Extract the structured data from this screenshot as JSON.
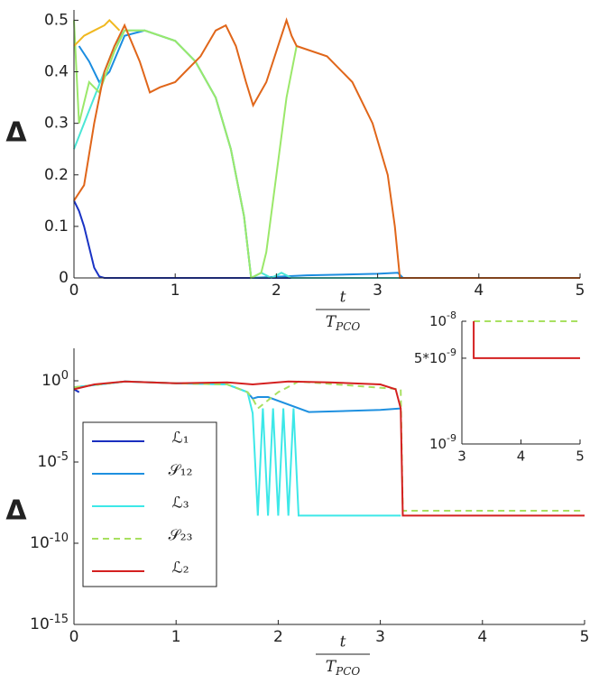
{
  "chart_data": [
    {
      "type": "line",
      "y_label": "Δ",
      "x_label": "t",
      "x_label_denominator": "T",
      "x_label_denominator_subscript": "PCO",
      "xlim": [
        0,
        5
      ],
      "ylim": [
        0,
        0.52
      ],
      "xticks": [
        0,
        1,
        2,
        3,
        4,
        5
      ],
      "yticks": [
        0,
        0.1,
        0.2,
        0.3,
        0.4,
        0.5
      ],
      "series": [
        {
          "color": "#1a33c4",
          "x": [
            0,
            0.05,
            0.1,
            0.15,
            0.2,
            0.25,
            0.3,
            5
          ],
          "values": [
            0.15,
            0.13,
            0.1,
            0.06,
            0.02,
            0.003,
            0,
            0
          ]
        },
        {
          "color": "#1b8de0",
          "x": [
            0.05,
            0.15,
            0.25,
            0.35,
            0.5,
            0.7,
            1.0,
            1.2,
            1.4,
            1.55,
            1.68,
            1.75,
            2.3,
            3.0,
            3.2,
            3.25,
            5
          ],
          "values": [
            0.45,
            0.42,
            0.38,
            0.4,
            0.47,
            0.48,
            0.46,
            0.42,
            0.35,
            0.25,
            0.12,
            0,
            0.005,
            0.008,
            0.01,
            0,
            0
          ]
        },
        {
          "color": "#4be6d6",
          "x": [
            0,
            0.1,
            0.2,
            0.4,
            0.5,
            0.7,
            1.0,
            1.2,
            1.4,
            1.55,
            1.68,
            1.75,
            1.85,
            1.95,
            2.05,
            2.15,
            2.3,
            5
          ],
          "values": [
            0.25,
            0.3,
            0.35,
            0.45,
            0.48,
            0.48,
            0.46,
            0.42,
            0.35,
            0.25,
            0.12,
            0,
            0.01,
            0,
            0.01,
            0,
            0,
            0
          ]
        },
        {
          "color": "#9be86a",
          "x": [
            0,
            0.05,
            0.15,
            0.25,
            0.4,
            0.5,
            0.7,
            1.0,
            1.2,
            1.4,
            1.55,
            1.68,
            1.75,
            1.85,
            1.9,
            2.0,
            2.1,
            2.2
          ],
          "values": [
            0.5,
            0.3,
            0.38,
            0.36,
            0.44,
            0.48,
            0.48,
            0.46,
            0.42,
            0.35,
            0.25,
            0.12,
            0,
            0.01,
            0.05,
            0.2,
            0.35,
            0.45
          ]
        },
        {
          "color": "#f0b820",
          "x": [
            0,
            0.05,
            0.1,
            0.2,
            0.3,
            0.35,
            0.45
          ],
          "values": [
            0.45,
            0.46,
            0.47,
            0.48,
            0.49,
            0.5,
            0.48
          ]
        },
        {
          "color": "#e0661a",
          "x": [
            0,
            0.1,
            0.2,
            0.3,
            0.4,
            0.5,
            0.65,
            0.75,
            0.85,
            1.0,
            1.1,
            1.25,
            1.4,
            1.5,
            1.6,
            1.7,
            1.77,
            1.9,
            2.0,
            2.1,
            2.15,
            2.2,
            2.5,
            2.75,
            2.95,
            3.1,
            3.17,
            3.22,
            5
          ],
          "values": [
            0.15,
            0.18,
            0.3,
            0.4,
            0.45,
            0.49,
            0.42,
            0.36,
            0.37,
            0.38,
            0.4,
            0.43,
            0.48,
            0.49,
            0.45,
            0.38,
            0.335,
            0.38,
            0.44,
            0.5,
            0.47,
            0.45,
            0.43,
            0.38,
            0.3,
            0.2,
            0.1,
            0,
            0
          ]
        }
      ]
    },
    {
      "type": "line",
      "log_y": true,
      "y_label": "Δ",
      "x_label": "t",
      "x_label_denominator": "T",
      "x_label_denominator_subscript": "PCO",
      "xlim": [
        0,
        5
      ],
      "ylim": [
        1e-15,
        100
      ],
      "xticks": [
        0,
        1,
        2,
        3,
        4,
        5
      ],
      "yticks": [
        {
          "value": 1e-15,
          "label": "10",
          "exp": "-15"
        },
        {
          "value": 1e-10,
          "label": "10",
          "exp": "-10"
        },
        {
          "value": 1e-05,
          "label": "10",
          "exp": "-5"
        },
        {
          "value": 1,
          "label": "10",
          "exp": "0"
        }
      ],
      "legend": true,
      "series": [
        {
          "name": "ℒ₁",
          "color": "#1a2fbf",
          "x": [
            0,
            0.05
          ],
          "values": [
            0.3,
            0.2
          ]
        },
        {
          "name": "𝒮₁₂",
          "color": "#1e90e0",
          "x": [
            0,
            0.5,
            1.0,
            1.5,
            1.7,
            1.75,
            1.8,
            1.9,
            2.3,
            3.0,
            3.2
          ],
          "values": [
            0.4,
            0.9,
            0.7,
            0.6,
            0.2,
            0.08,
            0.1,
            0.1,
            0.012,
            0.016,
            0.02
          ]
        },
        {
          "name": "ℒ₃",
          "color": "#3de8e8",
          "x": [
            0,
            0.5,
            1.0,
            1.5,
            1.7,
            1.75,
            1.8,
            1.85,
            1.9,
            1.95,
            2.0,
            2.05,
            2.1,
            2.15,
            2.2,
            2.25,
            3.2
          ],
          "values": [
            0.4,
            0.9,
            0.7,
            0.6,
            0.2,
            0.01,
            5e-09,
            0.02,
            5e-09,
            0.02,
            5e-09,
            0.02,
            5e-09,
            0.02,
            5e-09,
            5e-09,
            5e-09
          ]
        },
        {
          "name": "𝒮₂₃",
          "color": "#a8e060",
          "dashed": true,
          "x": [
            0,
            0.5,
            1.0,
            1.5,
            1.7,
            1.75,
            1.8,
            2.0,
            2.2,
            3.2,
            3.22,
            5
          ],
          "values": [
            0.4,
            0.9,
            0.7,
            0.6,
            0.2,
            0.08,
            0.02,
            0.2,
            0.9,
            0.3,
            1e-08,
            1e-08
          ]
        },
        {
          "name": "ℒ₂",
          "color": "#d42020",
          "x": [
            0,
            0.2,
            0.5,
            1.0,
            1.5,
            1.75,
            2.1,
            2.5,
            3.0,
            3.15,
            3.2,
            3.22,
            5
          ],
          "values": [
            0.3,
            0.6,
            0.9,
            0.7,
            0.8,
            0.6,
            0.9,
            0.8,
            0.6,
            0.3,
            0.02,
            5e-09,
            5e-09
          ]
        }
      ]
    },
    {
      "type": "line",
      "log_y": true,
      "xlim": [
        3,
        5
      ],
      "ylim": [
        1e-09,
        1e-08
      ],
      "xticks": [
        3,
        4,
        5
      ],
      "yticks": [
        {
          "value": 1e-09,
          "label": "10",
          "exp": "-9"
        },
        {
          "value": 5e-09,
          "label": "5*10",
          "exp": "-9"
        },
        {
          "value": 1e-08,
          "label": "10",
          "exp": "-8"
        }
      ],
      "series": [
        {
          "color": "#a8e060",
          "dashed": true,
          "x": [
            3.2,
            5
          ],
          "values": [
            1e-08,
            1e-08
          ]
        },
        {
          "color": "#d42020",
          "x": [
            3.2,
            3.2,
            5
          ],
          "values": [
            1e-08,
            5e-09,
            5e-09
          ]
        }
      ]
    }
  ]
}
